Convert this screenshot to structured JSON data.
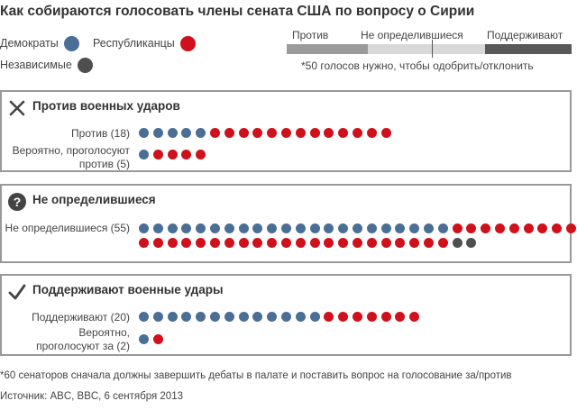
{
  "title": "Как собираются голосовать члены сената США по вопросу о Сирии",
  "legend": {
    "democrats": "Демократы",
    "republicans": "Республиканцы",
    "independents": "Независимые"
  },
  "scale": {
    "against": "Против",
    "undecided": "Не определившиеся",
    "support": "Поддерживают",
    "note": "*50 голосов нужно, чтобы одобрить/отклонить"
  },
  "colors": {
    "democrat": "#4a6e96",
    "republican": "#d0101a",
    "independent": "#4f4f4f",
    "scale_against": "#9b9b9b",
    "scale_undecided": "#d8d8d8",
    "scale_support": "#595959"
  },
  "sections": [
    {
      "icon": "cross-icon",
      "title": "Против военных ударов",
      "rows": [
        {
          "label_lines": [
            "Против (18)"
          ]
        },
        {
          "label_lines": [
            "Вероятно, проголосуют",
            "против (5)"
          ]
        }
      ]
    },
    {
      "icon": "question-icon",
      "title": "Не определившиеся",
      "rows": [
        {
          "label_lines": [
            "Не определившиеся (55)"
          ]
        }
      ]
    },
    {
      "icon": "checkmark-icon",
      "title": "Поддерживают военные удары",
      "rows": [
        {
          "label_lines": [
            "Поддерживают (20)"
          ]
        },
        {
          "label_lines": [
            "Вероятно,",
            "проголосуют за (2)"
          ]
        }
      ]
    }
  ],
  "footnote": "*60 сенаторов сначала должны завершить дебаты в палате и поставить вопрос на голосование за/против",
  "source": "Источник: ABC, BBC, 6 сентября 2013",
  "chart_data": {
    "type": "table",
    "title": "Как собираются голосовать члены сената США по вопросу о Сирии",
    "columns": [
      "category",
      "total",
      "democrats",
      "republicans",
      "independents"
    ],
    "rows": [
      [
        "Против (18)",
        18,
        5,
        13,
        0
      ],
      [
        "Вероятно, проголосуют против (5)",
        5,
        1,
        4,
        0
      ],
      [
        "Не определившиеся (55)",
        55,
        22,
        31,
        2
      ],
      [
        "Поддерживают (20)",
        20,
        13,
        7,
        0
      ],
      [
        "Вероятно, проголосуют за (2)",
        2,
        1,
        1,
        0
      ]
    ]
  }
}
